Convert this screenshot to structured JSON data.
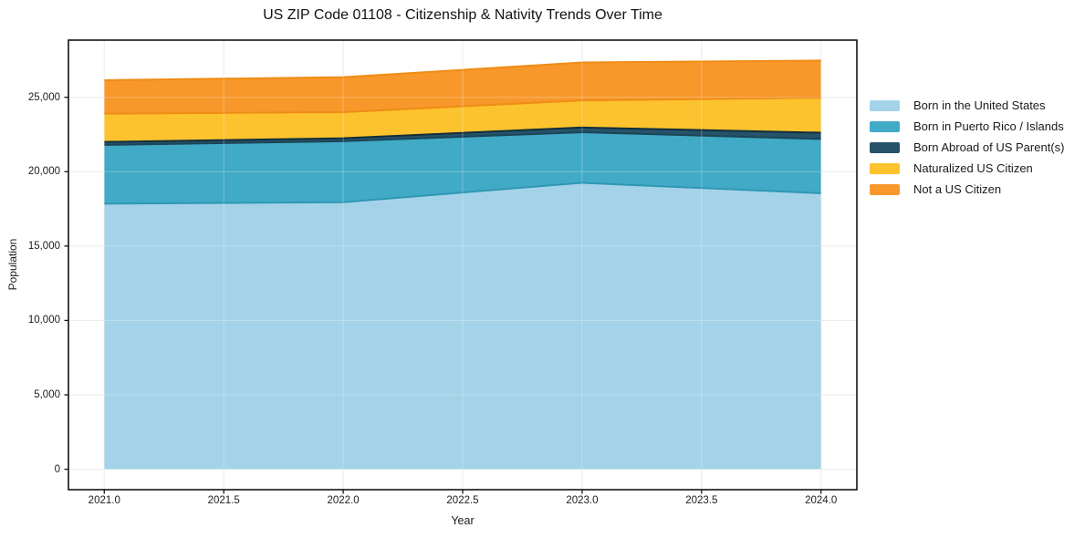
{
  "figure": {
    "background": "#ffffff",
    "spine_color": "#141414",
    "tick_color": "#141414",
    "grid_color": "#e9e9e9",
    "grid_overlay_color": "rgba(245,245,245,0.30)"
  },
  "chart_data": {
    "type": "area",
    "stacked": true,
    "title": "US ZIP Code 01108 - Citizenship & Nativity Trends Over Time",
    "xlabel": "Year",
    "ylabel": "Population",
    "x": [
      2021,
      2022,
      2023,
      2024
    ],
    "series": [
      {
        "id": "born-us",
        "name": "Born in the United States",
        "color": "#a4d3e9",
        "edge": "#2f97b3",
        "values": [
          17850,
          17950,
          19250,
          18550
        ]
      },
      {
        "id": "born-pr",
        "name": "Born in Puerto Rico / Islands",
        "color": "#41aac6",
        "edge": "#1c4456",
        "values": [
          3950,
          4100,
          3400,
          3650
        ]
      },
      {
        "id": "born-abroad",
        "name": "Born Abroad of US Parent(s)",
        "color": "#26536a",
        "edge": "#132e3b",
        "values": [
          200,
          200,
          320,
          420
        ]
      },
      {
        "id": "naturalized",
        "name": "Naturalized US Citizen",
        "color": "#fdc32e",
        "edge": "#ef8c15",
        "values": [
          1900,
          1750,
          1820,
          2350
        ]
      },
      {
        "id": "not-citizen",
        "name": "Not a US Citizen",
        "color": "#f8982b",
        "edge": "#ef8c15",
        "values": [
          2250,
          2350,
          2550,
          2500
        ]
      }
    ],
    "totals": [
      26150,
      26350,
      27340,
      27470
    ],
    "xlim": [
      2020.85,
      2024.15
    ],
    "ylim": [
      -1373,
      28843
    ],
    "x_ticks": {
      "values": [
        2021,
        2021.5,
        2022,
        2022.5,
        2023,
        2023.5,
        2024
      ],
      "labels": [
        "2021.0",
        "2021.5",
        "2022.0",
        "2022.5",
        "2023.0",
        "2023.5",
        "2024.0"
      ]
    },
    "y_ticks": {
      "values": [
        0,
        5000,
        10000,
        15000,
        20000,
        25000
      ],
      "labels": [
        "0",
        "5,000",
        "10,000",
        "15,000",
        "20,000",
        "25,000"
      ]
    },
    "grid": true,
    "legend_position": "right-outside"
  }
}
